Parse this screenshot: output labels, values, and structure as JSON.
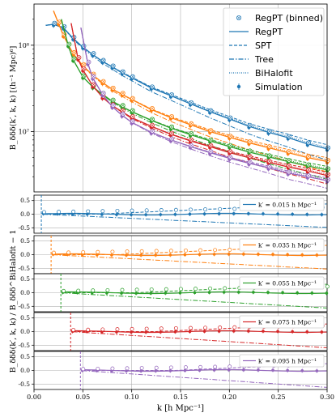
{
  "chart_data": {
    "type": "line",
    "xlabel": "k [h Mpc⁻¹]",
    "xlim": [
      0.0,
      0.3
    ],
    "xticks": [
      "0.00",
      "0.05",
      "0.10",
      "0.15",
      "0.20",
      "0.25",
      "0.30"
    ],
    "main_panel": {
      "ylabel": "B_δδδ(k′, k, k) [(h⁻¹ Mpc)⁶]",
      "yscale": "log",
      "ylim": [
        2000000,
        300000000
      ],
      "ytick_labels": [
        "10⁸",
        "10⁷"
      ],
      "legend": {
        "position": "top-right",
        "entries": [
          "RegPT (binned)",
          "RegPT",
          "SPT",
          "Tree",
          "BiHalofit",
          "Simulation"
        ]
      },
      "series": [
        {
          "kprime": 0.015,
          "color": "#1f77b4",
          "x": [
            0.012,
            0.02,
            0.03,
            0.04,
            0.05,
            0.06,
            0.07,
            0.08,
            0.09,
            0.1,
            0.12,
            0.14,
            0.16,
            0.18,
            0.2,
            0.22,
            0.24,
            0.26,
            0.28,
            0.3
          ],
          "y": [
            170000000,
            175000000,
            160000000,
            120000000,
            95000000,
            78000000,
            65000000,
            56000000,
            48000000,
            42000000,
            32000000,
            26000000,
            21000000,
            17000000,
            14000000,
            11500000,
            9800000,
            8500000,
            7200000,
            6300000
          ]
        },
        {
          "kprime": 0.035,
          "color": "#ff7f0e",
          "x": [
            0.02,
            0.025,
            0.03,
            0.04,
            0.05,
            0.06,
            0.07,
            0.08,
            0.09,
            0.1,
            0.12,
            0.14,
            0.16,
            0.18,
            0.2,
            0.22,
            0.24,
            0.26,
            0.28,
            0.3
          ],
          "y": [
            250000000,
            180000000,
            130000000,
            80000000,
            58000000,
            45000000,
            37000000,
            31000000,
            27000000,
            23500000,
            18000000,
            14500000,
            12000000,
            10000000,
            8600000,
            7400000,
            6500000,
            5700000,
            5000000,
            4500000
          ]
        },
        {
          "kprime": 0.055,
          "color": "#2ca02c",
          "x": [
            0.028,
            0.035,
            0.04,
            0.05,
            0.06,
            0.07,
            0.08,
            0.09,
            0.1,
            0.12,
            0.14,
            0.16,
            0.18,
            0.2,
            0.22,
            0.24,
            0.26,
            0.28,
            0.3
          ],
          "y": [
            200000000,
            100000000,
            68000000,
            43000000,
            33000000,
            27000000,
            22500000,
            19500000,
            17000000,
            13500000,
            11000000,
            9200000,
            7800000,
            6700000,
            5800000,
            5100000,
            4500000,
            4000000,
            3600000
          ]
        },
        {
          "kprime": 0.075,
          "color": "#d62728",
          "x": [
            0.038,
            0.045,
            0.05,
            0.06,
            0.07,
            0.08,
            0.09,
            0.1,
            0.12,
            0.14,
            0.16,
            0.18,
            0.2,
            0.22,
            0.24,
            0.26,
            0.28,
            0.3
          ],
          "y": [
            180000000,
            70000000,
            52000000,
            34000000,
            25000000,
            20000000,
            17000000,
            14500000,
            11500000,
            9300000,
            7800000,
            6700000,
            5700000,
            5000000,
            4400000,
            3900000,
            3500000,
            3100000
          ]
        },
        {
          "kprime": 0.095,
          "color": "#9467bd",
          "x": [
            0.048,
            0.055,
            0.06,
            0.07,
            0.08,
            0.09,
            0.1,
            0.12,
            0.14,
            0.16,
            0.18,
            0.2,
            0.22,
            0.24,
            0.26,
            0.28,
            0.3
          ],
          "y": [
            160000000,
            62000000,
            42000000,
            27000000,
            19500000,
            15500000,
            12800000,
            9800000,
            8000000,
            6700000,
            5700000,
            4900000,
            4300000,
            3800000,
            3300000,
            3000000,
            2700000
          ]
        }
      ]
    },
    "ratio_panels": {
      "ylabel": "B_δδδ(k′, k, k) / B_δδδ^BiHalofit − 1",
      "ylim": [
        -0.7,
        0.7
      ],
      "yticks": [
        "0.5",
        "0.0",
        "-0.5"
      ],
      "panels": [
        {
          "label": "k′ = 0.015 h Mpc⁻¹",
          "color": "#1f77b4",
          "kprime": 0.015
        },
        {
          "label": "k′ = 0.035 h Mpc⁻¹",
          "color": "#ff7f0e",
          "kprime": 0.035
        },
        {
          "label": "k′ = 0.055 h Mpc⁻¹",
          "color": "#2ca02c",
          "kprime": 0.055
        },
        {
          "label": "k′ = 0.075 h Mpc⁻¹",
          "color": "#d62728",
          "kprime": 0.075
        },
        {
          "label": "k′ = 0.095 h Mpc⁻¹",
          "color": "#9467bd",
          "kprime": 0.095
        }
      ]
    }
  }
}
